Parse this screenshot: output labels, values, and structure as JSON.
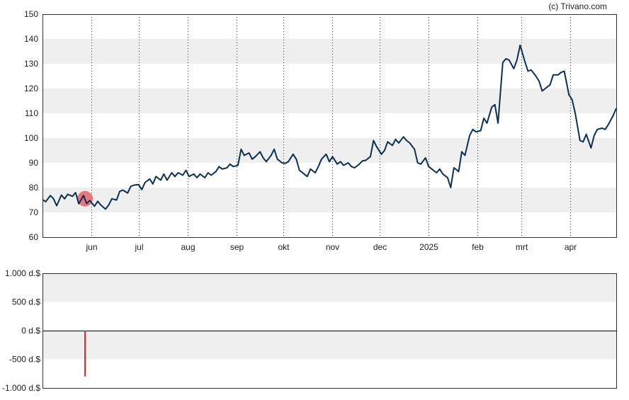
{
  "credit": "(c) Trivano.com",
  "chart_data": [
    {
      "type": "line",
      "title": "",
      "xlabel": "",
      "ylabel": "",
      "ylim": [
        60,
        150
      ],
      "yticks": [
        60,
        70,
        80,
        90,
        100,
        110,
        120,
        130,
        140,
        150
      ],
      "grid": "alternating horizontal bands, dotted vertical month lines",
      "x_range": [
        "2024-05-01",
        "2025-04-30"
      ],
      "month_ticks": [
        {
          "label": "jun",
          "date": "2024-06-01"
        },
        {
          "label": "jul",
          "date": "2024-07-01"
        },
        {
          "label": "aug",
          "date": "2024-08-01"
        },
        {
          "label": "sep",
          "date": "2024-09-01"
        },
        {
          "label": "okt",
          "date": "2024-10-01"
        },
        {
          "label": "nov",
          "date": "2024-11-01"
        },
        {
          "label": "dec",
          "date": "2024-12-01"
        },
        {
          "label": "2025",
          "date": "2025-01-01"
        },
        {
          "label": "feb",
          "date": "2025-02-01"
        },
        {
          "label": "mrt",
          "date": "2025-03-01"
        },
        {
          "label": "apr",
          "date": "2025-04-01"
        }
      ],
      "line_color": "#0d3050",
      "marker": {
        "date": "2024-05-28",
        "value": 75.5,
        "color": "#e8606a"
      },
      "series": [
        {
          "points": [
            [
              "2024-05-01",
              75.2
            ],
            [
              "2024-05-03",
              74.3
            ],
            [
              "2024-05-06",
              76.8
            ],
            [
              "2024-05-08",
              75.5
            ],
            [
              "2024-05-10",
              72.7
            ],
            [
              "2024-05-13",
              77.0
            ],
            [
              "2024-05-15",
              75.5
            ],
            [
              "2024-05-17",
              77.3
            ],
            [
              "2024-05-20",
              76.5
            ],
            [
              "2024-05-22",
              78.0
            ],
            [
              "2024-05-24",
              73.5
            ],
            [
              "2024-05-27",
              76.8
            ],
            [
              "2024-05-29",
              73.6
            ],
            [
              "2024-05-31",
              74.8
            ],
            [
              "2024-06-03",
              72.5
            ],
            [
              "2024-06-05",
              74.5
            ],
            [
              "2024-06-07",
              73.0
            ],
            [
              "2024-06-10",
              71.3
            ],
            [
              "2024-06-12",
              73.0
            ],
            [
              "2024-06-14",
              75.5
            ],
            [
              "2024-06-17",
              75.0
            ],
            [
              "2024-06-19",
              78.5
            ],
            [
              "2024-06-21",
              79.0
            ],
            [
              "2024-06-24",
              77.8
            ],
            [
              "2024-06-26",
              80.5
            ],
            [
              "2024-06-28",
              81.0
            ],
            [
              "2024-07-01",
              81.2
            ],
            [
              "2024-07-03",
              79.2
            ],
            [
              "2024-07-05",
              82.0
            ],
            [
              "2024-07-08",
              83.5
            ],
            [
              "2024-07-10",
              81.5
            ],
            [
              "2024-07-12",
              84.5
            ],
            [
              "2024-07-15",
              83.0
            ],
            [
              "2024-07-17",
              85.5
            ],
            [
              "2024-07-19",
              83.0
            ],
            [
              "2024-07-22",
              86.0
            ],
            [
              "2024-07-24",
              84.5
            ],
            [
              "2024-07-26",
              86.0
            ],
            [
              "2024-07-29",
              85.0
            ],
            [
              "2024-07-31",
              87.0
            ],
            [
              "2024-08-02",
              84.5
            ],
            [
              "2024-08-05",
              85.5
            ],
            [
              "2024-08-07",
              84.0
            ],
            [
              "2024-08-09",
              85.5
            ],
            [
              "2024-08-12",
              84.0
            ],
            [
              "2024-08-14",
              86.0
            ],
            [
              "2024-08-16",
              85.0
            ],
            [
              "2024-08-19",
              86.5
            ],
            [
              "2024-08-21",
              88.5
            ],
            [
              "2024-08-23",
              87.5
            ],
            [
              "2024-08-26",
              88.0
            ],
            [
              "2024-08-28",
              89.5
            ],
            [
              "2024-08-30",
              88.5
            ],
            [
              "2024-09-02",
              89.0
            ],
            [
              "2024-09-04",
              95.5
            ],
            [
              "2024-09-06",
              93.0
            ],
            [
              "2024-09-09",
              94.0
            ],
            [
              "2024-09-11",
              91.5
            ],
            [
              "2024-09-13",
              92.5
            ],
            [
              "2024-09-16",
              94.5
            ],
            [
              "2024-09-18",
              92.0
            ],
            [
              "2024-09-20",
              90.5
            ],
            [
              "2024-09-23",
              93.0
            ],
            [
              "2024-09-25",
              95.5
            ],
            [
              "2024-09-27",
              91.5
            ],
            [
              "2024-09-30",
              90.0
            ],
            [
              "2024-10-02",
              89.8
            ],
            [
              "2024-10-04",
              90.5
            ],
            [
              "2024-10-07",
              93.5
            ],
            [
              "2024-10-09",
              91.5
            ],
            [
              "2024-10-11",
              87.0
            ],
            [
              "2024-10-14",
              85.5
            ],
            [
              "2024-10-16",
              84.5
            ],
            [
              "2024-10-18",
              87.5
            ],
            [
              "2024-10-21",
              86.0
            ],
            [
              "2024-10-23",
              88.5
            ],
            [
              "2024-10-25",
              91.5
            ],
            [
              "2024-10-28",
              93.5
            ],
            [
              "2024-10-30",
              90.5
            ],
            [
              "2024-11-01",
              92.5
            ],
            [
              "2024-11-04",
              89.5
            ],
            [
              "2024-11-06",
              90.5
            ],
            [
              "2024-11-08",
              89.0
            ],
            [
              "2024-11-11",
              90.0
            ],
            [
              "2024-11-13",
              88.5
            ],
            [
              "2024-11-15",
              88.0
            ],
            [
              "2024-11-18",
              89.5
            ],
            [
              "2024-11-20",
              90.8
            ],
            [
              "2024-11-22",
              91.0
            ],
            [
              "2024-11-25",
              92.5
            ],
            [
              "2024-11-27",
              99.0
            ],
            [
              "2024-11-29",
              96.5
            ],
            [
              "2024-12-02",
              93.5
            ],
            [
              "2024-12-04",
              95.0
            ],
            [
              "2024-12-06",
              98.5
            ],
            [
              "2024-12-09",
              97.0
            ],
            [
              "2024-12-11",
              99.5
            ],
            [
              "2024-12-13",
              98.0
            ],
            [
              "2024-12-16",
              100.5
            ],
            [
              "2024-12-18",
              99.0
            ],
            [
              "2024-12-20",
              98.0
            ],
            [
              "2024-12-23",
              95.5
            ],
            [
              "2024-12-25",
              90.0
            ],
            [
              "2024-12-27",
              89.5
            ],
            [
              "2024-12-30",
              92.0
            ],
            [
              "2025-01-01",
              88.5
            ],
            [
              "2025-01-03",
              87.5
            ],
            [
              "2025-01-06",
              86.0
            ],
            [
              "2025-01-08",
              87.5
            ],
            [
              "2025-01-10",
              85.5
            ],
            [
              "2025-01-13",
              84.0
            ],
            [
              "2025-01-15",
              80.0
            ],
            [
              "2025-01-17",
              88.0
            ],
            [
              "2025-01-20",
              86.5
            ],
            [
              "2025-01-22",
              94.5
            ],
            [
              "2025-01-24",
              93.0
            ],
            [
              "2025-01-27",
              101.0
            ],
            [
              "2025-01-29",
              103.5
            ],
            [
              "2025-01-31",
              102.5
            ],
            [
              "2025-02-03",
              103.0
            ],
            [
              "2025-02-05",
              108.0
            ],
            [
              "2025-02-07",
              106.0
            ],
            [
              "2025-02-10",
              112.5
            ],
            [
              "2025-02-12",
              113.5
            ],
            [
              "2025-02-14",
              106.0
            ],
            [
              "2025-02-17",
              130.5
            ],
            [
              "2025-02-19",
              132.0
            ],
            [
              "2025-02-21",
              131.5
            ],
            [
              "2025-02-24",
              128.0
            ],
            [
              "2025-02-26",
              131.5
            ],
            [
              "2025-02-28",
              137.5
            ],
            [
              "2025-03-03",
              131.0
            ],
            [
              "2025-03-05",
              127.0
            ],
            [
              "2025-03-07",
              127.5
            ],
            [
              "2025-03-10",
              125.0
            ],
            [
              "2025-03-12",
              123.0
            ],
            [
              "2025-03-14",
              119.0
            ],
            [
              "2025-03-17",
              120.5
            ],
            [
              "2025-03-19",
              121.5
            ],
            [
              "2025-03-21",
              125.5
            ],
            [
              "2025-03-24",
              125.5
            ],
            [
              "2025-03-26",
              126.5
            ],
            [
              "2025-03-28",
              127.0
            ],
            [
              "2025-03-31",
              117.5
            ],
            [
              "2025-04-02",
              115.5
            ],
            [
              "2025-04-04",
              110.0
            ],
            [
              "2025-04-07",
              99.0
            ],
            [
              "2025-04-09",
              98.5
            ],
            [
              "2025-04-11",
              101.5
            ],
            [
              "2025-04-14",
              96.0
            ],
            [
              "2025-04-16",
              101.0
            ],
            [
              "2025-04-18",
              103.5
            ],
            [
              "2025-04-21",
              104.0
            ],
            [
              "2025-04-23",
              103.5
            ],
            [
              "2025-04-25",
              105.5
            ],
            [
              "2025-04-28",
              109.0
            ],
            [
              "2025-04-30",
              112.0
            ]
          ]
        }
      ]
    },
    {
      "type": "bar",
      "title": "",
      "ylim": [
        -1000,
        1000
      ],
      "ytick_labels": [
        "1.000 d.$",
        "500 d.$",
        "0 d.$",
        "-500 d.$",
        "-1.000 d.$"
      ],
      "ytick_values": [
        1000,
        500,
        0,
        -500,
        -1000
      ],
      "bar_color": "#d42030",
      "bars": [
        {
          "date": "2024-05-28",
          "value": -800
        }
      ]
    }
  ]
}
